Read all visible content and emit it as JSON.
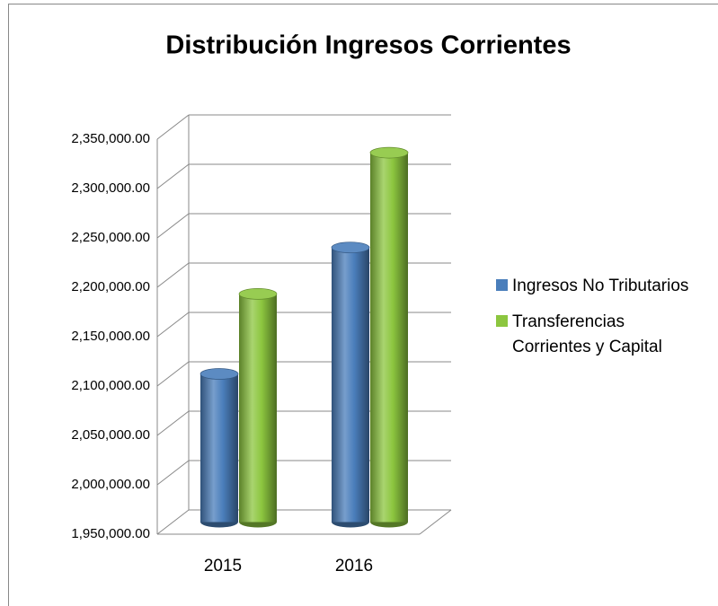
{
  "chart_data": {
    "type": "bar3d",
    "title": "Distribución Ingresos Corrientes",
    "categories": [
      "2015",
      "2016"
    ],
    "series": [
      {
        "name": "Ingresos No Tributarios",
        "color": "#4a7ebb",
        "values": [
          2100000,
          2228000
        ]
      },
      {
        "name": "Transferencias Corrientes y Capital",
        "color": "#8cc63f",
        "values": [
          2181000,
          2324000
        ]
      }
    ],
    "ylim": [
      1950000,
      2350000
    ],
    "yticks": [
      {
        "value": 1950000,
        "label": "1,950,000.00"
      },
      {
        "value": 2000000,
        "label": "2,000,000.00"
      },
      {
        "value": 2050000,
        "label": "2,050,000.00"
      },
      {
        "value": 2100000,
        "label": "2,100,000.00"
      },
      {
        "value": 2150000,
        "label": "2,150,000.00"
      },
      {
        "value": 2200000,
        "label": "2,200,000.00"
      },
      {
        "value": 2250000,
        "label": "2,250,000.00"
      },
      {
        "value": 2300000,
        "label": "2,300,000.00"
      },
      {
        "value": 2350000,
        "label": "2,350,000.00"
      }
    ],
    "grid": true,
    "legend": "right"
  }
}
